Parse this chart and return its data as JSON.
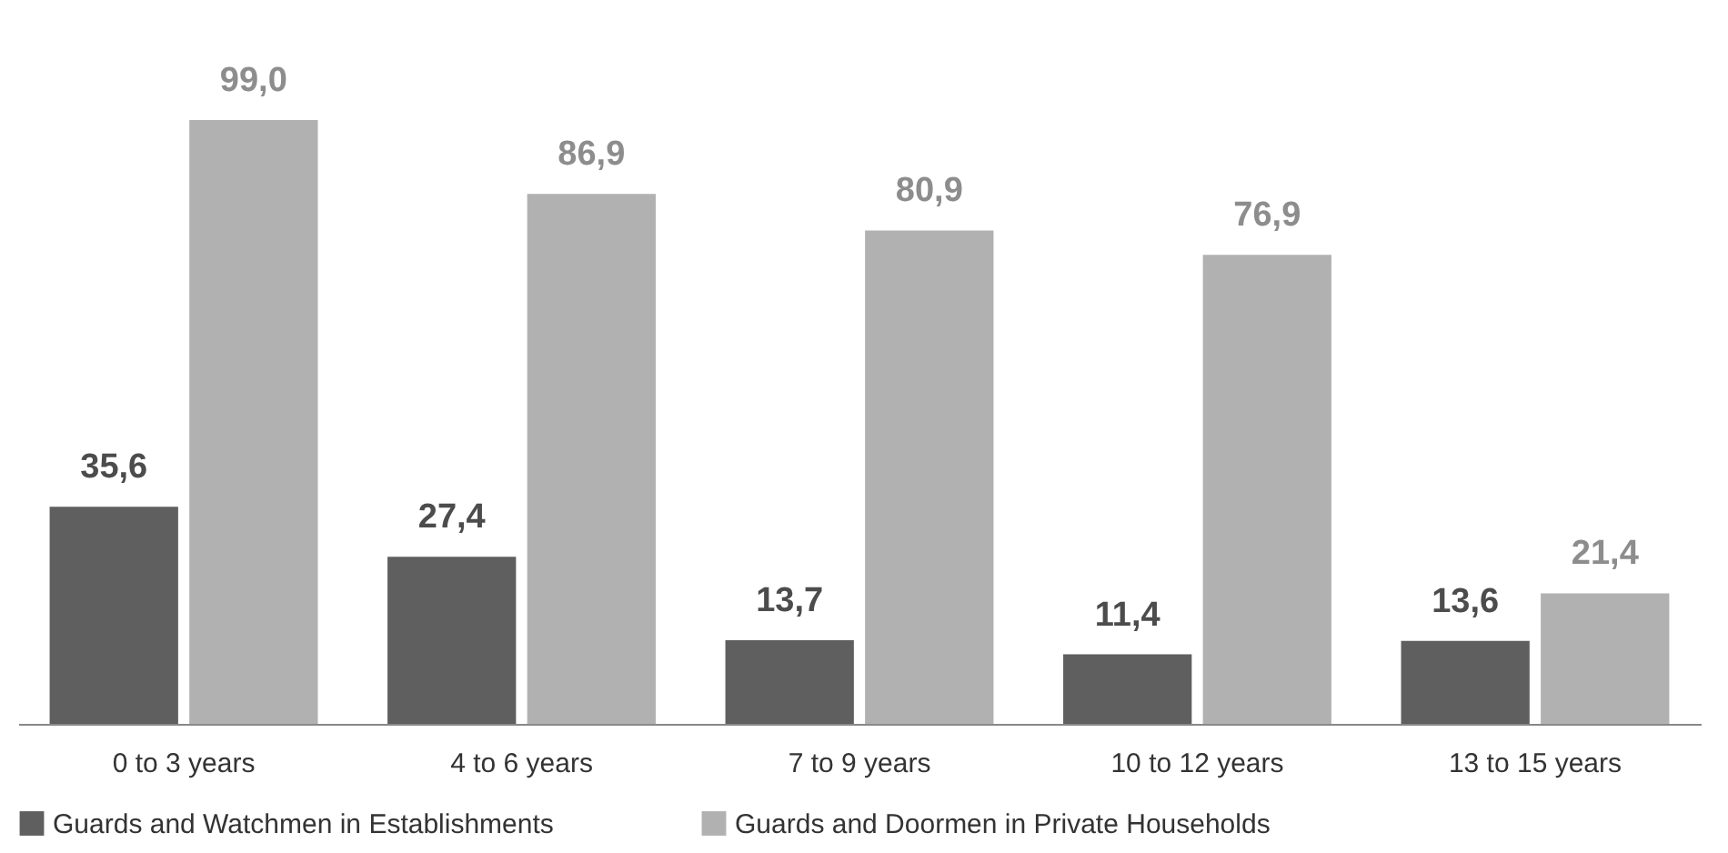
{
  "chart_data": {
    "type": "bar",
    "categories": [
      "0 to 3 years",
      "4 to 6 years",
      "7 to 9 years",
      "10 to 12 years",
      "13 to 15 years"
    ],
    "series": [
      {
        "name": "Guards and Watchmen in Establishments",
        "color": "#5f5f5f",
        "values": [
          35.6,
          27.4,
          13.7,
          11.4,
          13.6
        ],
        "value_labels": [
          "35,6",
          "27,4",
          "13,7",
          "11,4",
          "13,6"
        ]
      },
      {
        "name": "Guards and Doormen in Private Households",
        "color": "#b1b1b1",
        "values": [
          99.0,
          86.9,
          80.9,
          76.9,
          21.4
        ],
        "value_labels": [
          "99,0",
          "86,9",
          "80,9",
          "76,9",
          "21,4"
        ]
      }
    ],
    "legend": "bottom",
    "grid": false,
    "tick_labels": "x"
  }
}
